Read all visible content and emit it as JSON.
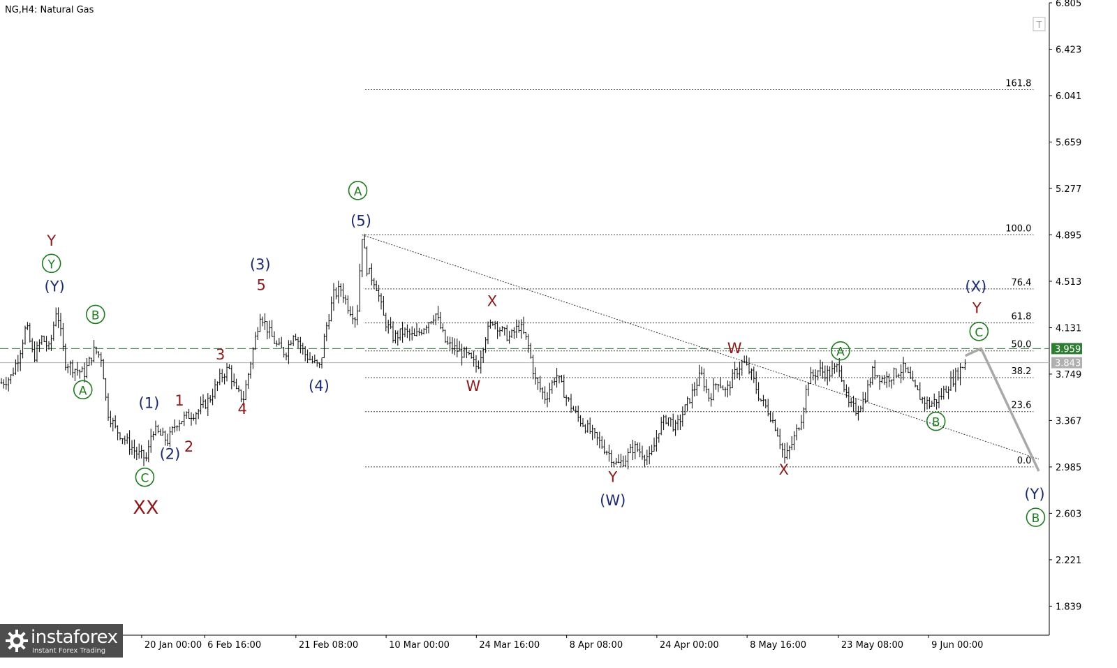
{
  "symbol_title": "NG,H4:  Natural Gas",
  "logo": {
    "name": "instaforex",
    "tagline": "Instant Forex Trading"
  },
  "colors": {
    "bars": "#000000",
    "current_price": "#2e7d32",
    "bid_line": "#b0b0b0",
    "wave_dark_red": "#8b1a1a",
    "wave_navy": "#1a2a6c",
    "wave_green": "#1e7a1e",
    "projection": "#a8a8a8"
  },
  "chart_data": {
    "type": "ohlc",
    "title": "NG,H4:  Natural Gas",
    "ylim": [
      1.6,
      6.805
    ],
    "y_ticks": [
      "6.805",
      "6.423",
      "6.041",
      "5.659",
      "5.277",
      "4.895",
      "4.513",
      "4.131",
      "3.749",
      "3.367",
      "2.985",
      "2.603",
      "2.221",
      "1.839"
    ],
    "x_ticks": [
      {
        "label": "20 Jan 00:00",
        "pos": 0.135
      },
      {
        "label": "6 Feb 16:00",
        "pos": 0.195
      },
      {
        "label": "21 Feb 08:00",
        "pos": 0.282
      },
      {
        "label": "10 Mar 00:00",
        "pos": 0.368
      },
      {
        "label": "24 Mar 16:00",
        "pos": 0.454
      },
      {
        "label": "8 Apr 08:00",
        "pos": 0.54
      },
      {
        "label": "24 Apr 00:00",
        "pos": 0.626
      },
      {
        "label": "8 May 16:00",
        "pos": 0.712
      },
      {
        "label": "23 May 08:00",
        "pos": 0.799
      },
      {
        "label": "9 Jun 00:00",
        "pos": 0.885
      }
    ],
    "current_price": 3.959,
    "bid_price": 3.843,
    "price_path": [
      [
        0.0,
        3.67
      ],
      [
        0.01,
        3.72
      ],
      [
        0.018,
        3.9
      ],
      [
        0.025,
        4.15
      ],
      [
        0.032,
        3.88
      ],
      [
        0.04,
        4.05
      ],
      [
        0.047,
        3.95
      ],
      [
        0.054,
        4.3
      ],
      [
        0.062,
        3.85
      ],
      [
        0.07,
        3.8
      ],
      [
        0.08,
        3.75
      ],
      [
        0.09,
        3.95
      ],
      [
        0.097,
        3.88
      ],
      [
        0.102,
        3.45
      ],
      [
        0.11,
        3.3
      ],
      [
        0.12,
        3.2
      ],
      [
        0.13,
        3.1
      ],
      [
        0.14,
        3.05
      ],
      [
        0.145,
        3.3
      ],
      [
        0.152,
        3.25
      ],
      [
        0.16,
        3.2
      ],
      [
        0.168,
        3.35
      ],
      [
        0.178,
        3.4
      ],
      [
        0.19,
        3.45
      ],
      [
        0.2,
        3.55
      ],
      [
        0.21,
        3.72
      ],
      [
        0.218,
        3.8
      ],
      [
        0.225,
        3.6
      ],
      [
        0.232,
        3.55
      ],
      [
        0.24,
        3.9
      ],
      [
        0.248,
        4.25
      ],
      [
        0.256,
        4.1
      ],
      [
        0.264,
        3.98
      ],
      [
        0.272,
        3.92
      ],
      [
        0.28,
        4.1
      ],
      [
        0.29,
        3.92
      ],
      [
        0.298,
        3.85
      ],
      [
        0.305,
        3.8
      ],
      [
        0.31,
        4.1
      ],
      [
        0.318,
        4.4
      ],
      [
        0.325,
        4.45
      ],
      [
        0.332,
        4.3
      ],
      [
        0.34,
        4.2
      ],
      [
        0.345,
        4.9
      ],
      [
        0.35,
        4.6
      ],
      [
        0.358,
        4.5
      ],
      [
        0.366,
        4.2
      ],
      [
        0.375,
        4.05
      ],
      [
        0.385,
        4.1
      ],
      [
        0.395,
        4.05
      ],
      [
        0.405,
        4.15
      ],
      [
        0.415,
        4.25
      ],
      [
        0.425,
        4.0
      ],
      [
        0.435,
        3.95
      ],
      [
        0.445,
        3.9
      ],
      [
        0.455,
        3.8
      ],
      [
        0.462,
        4.05
      ],
      [
        0.47,
        4.2
      ],
      [
        0.478,
        4.1
      ],
      [
        0.486,
        4.05
      ],
      [
        0.495,
        4.15
      ],
      [
        0.503,
        4.0
      ],
      [
        0.51,
        3.7
      ],
      [
        0.52,
        3.55
      ],
      [
        0.53,
        3.75
      ],
      [
        0.54,
        3.55
      ],
      [
        0.55,
        3.4
      ],
      [
        0.56,
        3.3
      ],
      [
        0.57,
        3.2
      ],
      [
        0.58,
        3.1
      ],
      [
        0.588,
        3.0
      ],
      [
        0.596,
        3.05
      ],
      [
        0.604,
        3.15
      ],
      [
        0.612,
        3.1
      ],
      [
        0.62,
        3.05
      ],
      [
        0.628,
        3.3
      ],
      [
        0.636,
        3.4
      ],
      [
        0.644,
        3.3
      ],
      [
        0.652,
        3.45
      ],
      [
        0.66,
        3.6
      ],
      [
        0.668,
        3.75
      ],
      [
        0.676,
        3.55
      ],
      [
        0.684,
        3.7
      ],
      [
        0.692,
        3.6
      ],
      [
        0.7,
        3.75
      ],
      [
        0.708,
        3.85
      ],
      [
        0.716,
        3.75
      ],
      [
        0.724,
        3.55
      ],
      [
        0.732,
        3.45
      ],
      [
        0.74,
        3.3
      ],
      [
        0.748,
        3.05
      ],
      [
        0.756,
        3.2
      ],
      [
        0.764,
        3.4
      ],
      [
        0.77,
        3.7
      ],
      [
        0.78,
        3.78
      ],
      [
        0.79,
        3.75
      ],
      [
        0.8,
        3.82
      ],
      [
        0.808,
        3.5
      ],
      [
        0.816,
        3.45
      ],
      [
        0.824,
        3.55
      ],
      [
        0.832,
        3.78
      ],
      [
        0.842,
        3.7
      ],
      [
        0.852,
        3.75
      ],
      [
        0.862,
        3.8
      ],
      [
        0.87,
        3.65
      ],
      [
        0.878,
        3.55
      ],
      [
        0.886,
        3.5
      ],
      [
        0.895,
        3.55
      ],
      [
        0.903,
        3.65
      ],
      [
        0.912,
        3.75
      ],
      [
        0.92,
        3.85
      ]
    ],
    "fibonacci_levels": [
      {
        "label": "161.8",
        "price": 6.09
      },
      {
        "label": "100.0",
        "price": 4.895
      },
      {
        "label": "76.4",
        "price": 4.45
      },
      {
        "label": "61.8",
        "price": 4.17
      },
      {
        "label": "50.0",
        "price": 3.94
      },
      {
        "label": "38.2",
        "price": 3.72
      },
      {
        "label": "23.6",
        "price": 3.44
      },
      {
        "label": "0.0",
        "price": 2.985
      }
    ],
    "trendline": {
      "from": [
        0.345,
        4.895
      ],
      "to": [
        0.99,
        3.05
      ]
    },
    "projection": [
      [
        0.92,
        3.9
      ],
      [
        0.935,
        3.96
      ],
      [
        0.99,
        2.95
      ]
    ],
    "wave_labels": [
      {
        "text": "Y",
        "x": 0.049,
        "y": 4.805,
        "color": "#8b1a1a",
        "style": "plain"
      },
      {
        "text": "Y",
        "x": 0.049,
        "y": 4.62,
        "color": "#1e7a1e",
        "style": "circle"
      },
      {
        "text": "(Y)",
        "x": 0.052,
        "y": 4.43,
        "color": "#1a2a6c",
        "style": "plain"
      },
      {
        "text": "B",
        "x": 0.091,
        "y": 4.2,
        "color": "#1e7a1e",
        "style": "circle"
      },
      {
        "text": "A",
        "x": 0.079,
        "y": 3.58,
        "color": "#1e7a1e",
        "style": "circle"
      },
      {
        "text": "(1)",
        "x": 0.142,
        "y": 3.47,
        "color": "#1a2a6c",
        "style": "plain"
      },
      {
        "text": "1",
        "x": 0.171,
        "y": 3.49,
        "color": "#8b1a1a",
        "style": "plain"
      },
      {
        "text": "2",
        "x": 0.18,
        "y": 3.11,
        "color": "#8b1a1a",
        "style": "plain"
      },
      {
        "text": "(2)",
        "x": 0.162,
        "y": 3.05,
        "color": "#1a2a6c",
        "style": "plain"
      },
      {
        "text": "C",
        "x": 0.138,
        "y": 2.86,
        "color": "#1e7a1e",
        "style": "circle"
      },
      {
        "text": "XX",
        "x": 0.139,
        "y": 2.6,
        "color": "#8b1a1a",
        "style": "large"
      },
      {
        "text": "3",
        "x": 0.21,
        "y": 3.87,
        "color": "#8b1a1a",
        "style": "plain"
      },
      {
        "text": "4",
        "x": 0.231,
        "y": 3.42,
        "color": "#8b1a1a",
        "style": "plain"
      },
      {
        "text": "(3)",
        "x": 0.248,
        "y": 4.61,
        "color": "#1a2a6c",
        "style": "plain"
      },
      {
        "text": "5",
        "x": 0.249,
        "y": 4.44,
        "color": "#8b1a1a",
        "style": "plain"
      },
      {
        "text": "(4)",
        "x": 0.304,
        "y": 3.61,
        "color": "#1a2a6c",
        "style": "plain"
      },
      {
        "text": "A",
        "x": 0.341,
        "y": 5.22,
        "color": "#1e7a1e",
        "style": "circle"
      },
      {
        "text": "(5)",
        "x": 0.344,
        "y": 4.97,
        "color": "#1a2a6c",
        "style": "plain"
      },
      {
        "text": "X",
        "x": 0.469,
        "y": 4.31,
        "color": "#8b1a1a",
        "style": "plain"
      },
      {
        "text": "W",
        "x": 0.451,
        "y": 3.61,
        "color": "#8b1a1a",
        "style": "plain"
      },
      {
        "text": "Y",
        "x": 0.584,
        "y": 2.86,
        "color": "#8b1a1a",
        "style": "plain"
      },
      {
        "text": "(W)",
        "x": 0.584,
        "y": 2.67,
        "color": "#1a2a6c",
        "style": "plain"
      },
      {
        "text": "W",
        "x": 0.7,
        "y": 3.92,
        "color": "#8b1a1a",
        "style": "plain"
      },
      {
        "text": "X",
        "x": 0.747,
        "y": 2.92,
        "color": "#8b1a1a",
        "style": "plain"
      },
      {
        "text": "A",
        "x": 0.801,
        "y": 3.9,
        "color": "#1e7a1e",
        "style": "circle"
      },
      {
        "text": "B",
        "x": 0.892,
        "y": 3.32,
        "color": "#1e7a1e",
        "style": "circle"
      },
      {
        "text": "(X)",
        "x": 0.93,
        "y": 4.43,
        "color": "#1a2a6c",
        "style": "plain"
      },
      {
        "text": "Y",
        "x": 0.931,
        "y": 4.25,
        "color": "#8b1a1a",
        "style": "plain"
      },
      {
        "text": "C",
        "x": 0.933,
        "y": 4.06,
        "color": "#1e7a1e",
        "style": "circle"
      },
      {
        "text": "(Y)",
        "x": 0.986,
        "y": 2.72,
        "color": "#1a2a6c",
        "style": "plain"
      },
      {
        "text": "B",
        "x": 0.987,
        "y": 2.53,
        "color": "#1e7a1e",
        "style": "circle"
      }
    ]
  }
}
